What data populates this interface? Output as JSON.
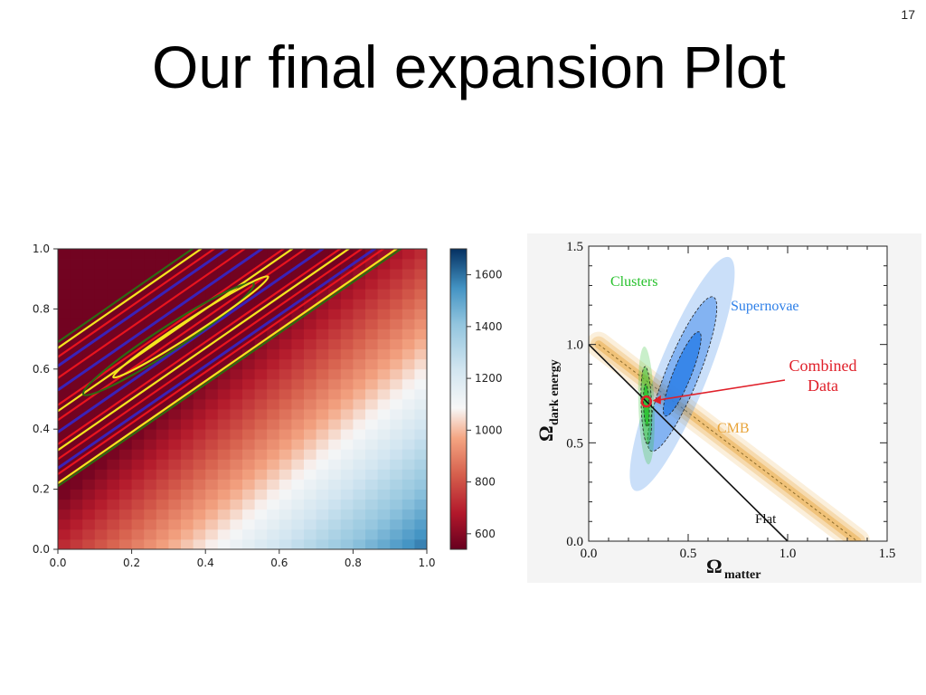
{
  "slide": {
    "number": "17",
    "title": "Our final expansion Plot"
  },
  "colors": {
    "contour_red": "#e8141e",
    "contour_yellow": "#f5e61e",
    "contour_blue": "#3a22b8",
    "contour_green": "#2e6b12",
    "clusters": "#27c12c",
    "supernovae": "#2d7fe8",
    "combined": "#e0202a",
    "cmb": "#e8a43a"
  },
  "chart_data": [
    {
      "type": "heatmap",
      "title": "",
      "xlabel": "",
      "ylabel": "",
      "xlim": [
        0.0,
        1.0
      ],
      "ylim": [
        0.0,
        1.0
      ],
      "xticks": [
        "0.0",
        "0.2",
        "0.4",
        "0.6",
        "0.8",
        "1.0"
      ],
      "yticks": [
        "0.0",
        "0.2",
        "0.4",
        "0.6",
        "0.8",
        "1.0"
      ],
      "grid_cells": 30,
      "value_model": "value ≈ 560 + 1150·max(0, (x − y + 0.18) / 1.3) (approximate diagonal gradient)",
      "colorbar": {
        "colormap": "RdBu",
        "range": [
          540,
          1700
        ],
        "ticks": [
          "600",
          "800",
          "1000",
          "1200",
          "1400",
          "1600"
        ]
      },
      "contours": [
        {
          "color": "red",
          "intercepts": [
            0.64,
            0.57,
            0.48,
            0.43,
            0.35,
            0.3,
            0.25
          ]
        },
        {
          "color": "yellow",
          "intercepts": [
            0.67,
            0.46,
            0.33,
            0.22
          ]
        },
        {
          "color": "blue",
          "intercepts": [
            0.61,
            0.53,
            0.39,
            0.27
          ]
        },
        {
          "color": "green",
          "intercepts": [
            0.69,
            0.21
          ]
        },
        {
          "color": "green",
          "closed": true,
          "center": [
            0.3,
            0.7
          ],
          "width": 0.55,
          "height": 0.08,
          "angle_deg": 33
        },
        {
          "color": "yellow",
          "closed": true,
          "center": [
            0.36,
            0.74
          ],
          "width": 0.5,
          "height": 0.05,
          "angle_deg": 33
        }
      ]
    },
    {
      "type": "scatter",
      "title": "",
      "xlabel": "Ω",
      "xlabel_sub": "matter",
      "ylabel": "Ω",
      "ylabel_sub": "dark energy",
      "xlim": [
        0.0,
        1.5
      ],
      "ylim": [
        0.0,
        1.5
      ],
      "xticks": [
        "0.0",
        "0.5",
        "1.0",
        "1.5"
      ],
      "yticks": [
        "0.0",
        "0.5",
        "1.0",
        "1.5"
      ],
      "regions": [
        {
          "name": "Clusters",
          "center": [
            0.29,
            0.69
          ],
          "semi_axes": [
            0.04,
            0.3
          ],
          "angle_deg": 2
        },
        {
          "name": "Supernovae",
          "center": [
            0.47,
            0.85
          ],
          "semi_axes": [
            0.125,
            0.64
          ],
          "angle_deg": -22
        },
        {
          "name": "CMB",
          "band_from": [
            0.05,
            1.0
          ],
          "band_to": [
            1.35,
            0.0
          ]
        }
      ],
      "lines": [
        {
          "name": "Flat",
          "from": [
            0.0,
            1.0
          ],
          "to": [
            1.0,
            0.0
          ]
        }
      ],
      "points": [
        {
          "name": "Combined Data",
          "x": 0.29,
          "y": 0.71
        }
      ],
      "annotations": {
        "clusters": "Clusters",
        "supernovae": "Supernovae",
        "combined_line1": "Combined",
        "combined_line2": "Data",
        "cmb": "CMB",
        "flat": "Flat"
      }
    }
  ]
}
